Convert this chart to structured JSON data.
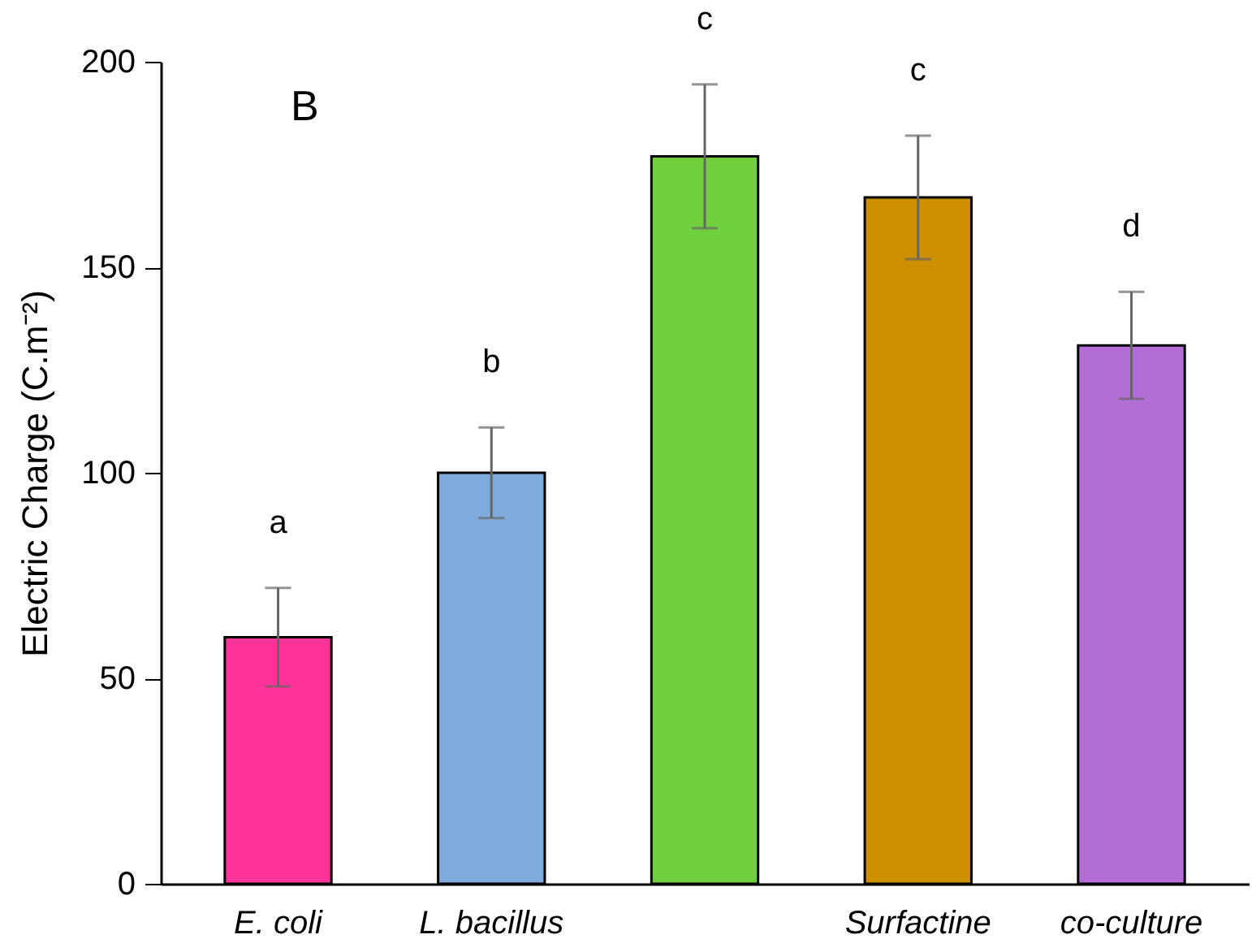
{
  "chart_data": {
    "type": "bar",
    "ylabel": "Electric Charge (C.m⁻²)",
    "categories": [
      "E. coli",
      "L. bacillus",
      null,
      "Surfactine",
      "co-culture"
    ],
    "values": [
      60,
      100,
      177,
      167,
      131
    ],
    "errors": [
      12,
      11,
      17.5,
      15,
      13
    ],
    "colors": [
      "#ff3399",
      "#7faadc",
      "#70cf3c",
      "#cc8f00",
      "#b46dd6"
    ],
    "ylim": [
      0,
      200
    ],
    "yticks": [
      0,
      50,
      100,
      150,
      200
    ],
    "grid": false,
    "annotations": [
      "B",
      "a",
      "b",
      "c",
      "c",
      "d"
    ]
  }
}
